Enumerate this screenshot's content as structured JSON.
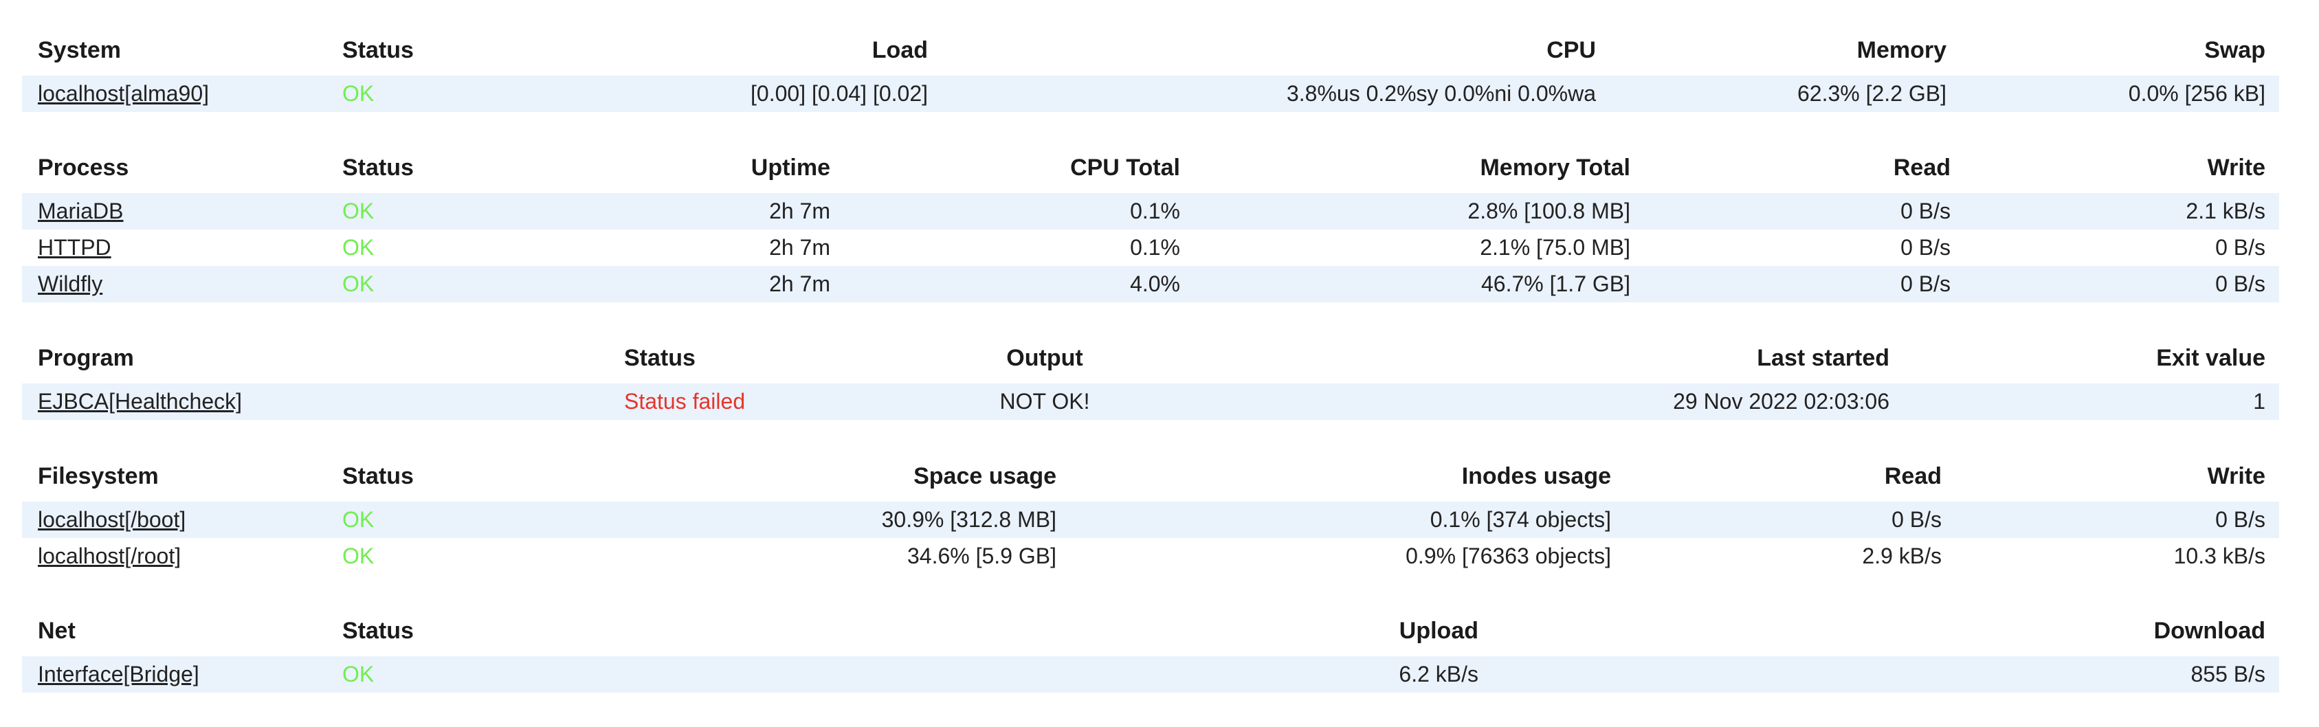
{
  "colors": {
    "status_ok": "#70ee50",
    "status_failed": "#e5352b",
    "row_stripe": "#eaf2fc",
    "text": "#222222"
  },
  "tables": [
    {
      "id": "system",
      "headers": [
        "System",
        "Status",
        "Load",
        "CPU",
        "Memory",
        "Swap"
      ],
      "rows": [
        {
          "name": "localhost[alma90]",
          "status": "OK",
          "status_color": "ok",
          "cells": [
            "[0.00] [0.04] [0.02]",
            "3.8%us 0.2%sy 0.0%ni 0.0%wa",
            "62.3% [2.2 GB]",
            "0.0% [256 kB]"
          ]
        }
      ]
    },
    {
      "id": "process",
      "headers": [
        "Process",
        "Status",
        "Uptime",
        "CPU Total",
        "Memory Total",
        "Read",
        "Write"
      ],
      "rows": [
        {
          "name": "MariaDB",
          "status": "OK",
          "status_color": "ok",
          "cells": [
            "2h 7m",
            "0.1%",
            "2.8% [100.8 MB]",
            "0 B/s",
            "2.1 kB/s"
          ]
        },
        {
          "name": "HTTPD",
          "status": "OK",
          "status_color": "ok",
          "cells": [
            "2h 7m",
            "0.1%",
            "2.1% [75.0 MB]",
            "0 B/s",
            "0 B/s"
          ]
        },
        {
          "name": "Wildfly",
          "status": "OK",
          "status_color": "ok",
          "cells": [
            "2h 7m",
            "4.0%",
            "46.7% [1.7 GB]",
            "0 B/s",
            "0 B/s"
          ]
        }
      ]
    },
    {
      "id": "program",
      "headers": [
        "Program",
        "Status",
        "Output",
        "Last started",
        "Exit value"
      ],
      "rows": [
        {
          "name": "EJBCA[Healthcheck]",
          "status": "Status failed",
          "status_color": "fail",
          "cells": [
            "NOT OK!",
            "29 Nov 2022 02:03:06",
            "1"
          ]
        }
      ]
    },
    {
      "id": "filesystem",
      "headers": [
        "Filesystem",
        "Status",
        "Space usage",
        "Inodes usage",
        "Read",
        "Write"
      ],
      "rows": [
        {
          "name": "localhost[/boot]",
          "status": "OK",
          "status_color": "ok",
          "cells": [
            "30.9% [312.8 MB]",
            "0.1% [374 objects]",
            "0 B/s",
            "0 B/s"
          ]
        },
        {
          "name": "localhost[/root]",
          "status": "OK",
          "status_color": "ok",
          "cells": [
            "34.6% [5.9 GB]",
            "0.9% [76363 objects]",
            "2.9 kB/s",
            "10.3 kB/s"
          ]
        }
      ]
    },
    {
      "id": "net",
      "headers": [
        "Net",
        "Status",
        "Upload",
        "Download"
      ],
      "rows": [
        {
          "name": "Interface[Bridge]",
          "status": "OK",
          "status_color": "ok",
          "cells": [
            "6.2 kB/s",
            "855 B/s"
          ]
        }
      ]
    }
  ]
}
